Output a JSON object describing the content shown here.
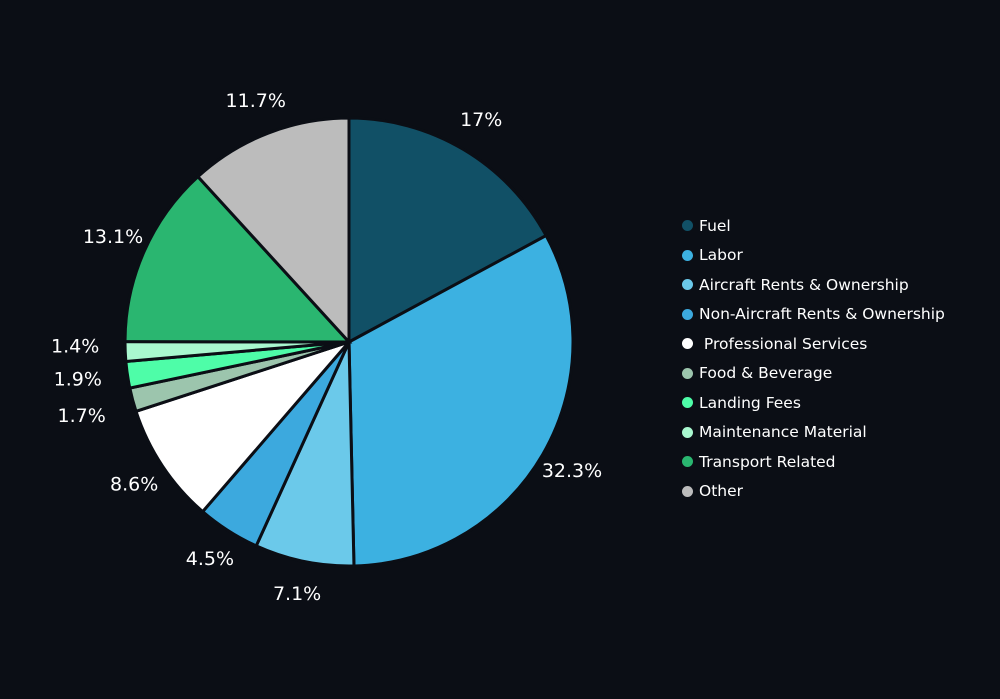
{
  "chart_data": {
    "type": "pie",
    "title": "",
    "slices": [
      {
        "label": "Fuel",
        "value": 17,
        "display": "17%",
        "color": "#115066"
      },
      {
        "label": "Labor",
        "value": 32.3,
        "display": "32.3%",
        "color": "#3cb1e1"
      },
      {
        "label": "Aircraft Rents & Ownership",
        "value": 7.1,
        "display": "7.1%",
        "color": "#6bc9ea"
      },
      {
        "label": "Non-Aircraft Rents & Ownership",
        "value": 4.5,
        "display": "4.5%",
        "color": "#3ca9de"
      },
      {
        "label": " Professional Services",
        "value": 8.6,
        "display": "8.6%",
        "color": "#ffffff"
      },
      {
        "label": "Food & Beverage",
        "value": 1.7,
        "display": "1.7%",
        "color": "#9cc5ad"
      },
      {
        "label": "Landing Fees",
        "value": 1.9,
        "display": "1.9%",
        "color": "#4efda8"
      },
      {
        "label": "Maintenance Material",
        "value": 1.4,
        "display": "1.4%",
        "color": "#a9f8cf"
      },
      {
        "label": "Transport Related",
        "value": 13.1,
        "display": "13.1%",
        "color": "#2ab670"
      },
      {
        "label": "Other",
        "value": 11.7,
        "display": "11.7%",
        "color": "#bcbcbc"
      }
    ],
    "legend_position": "right"
  }
}
